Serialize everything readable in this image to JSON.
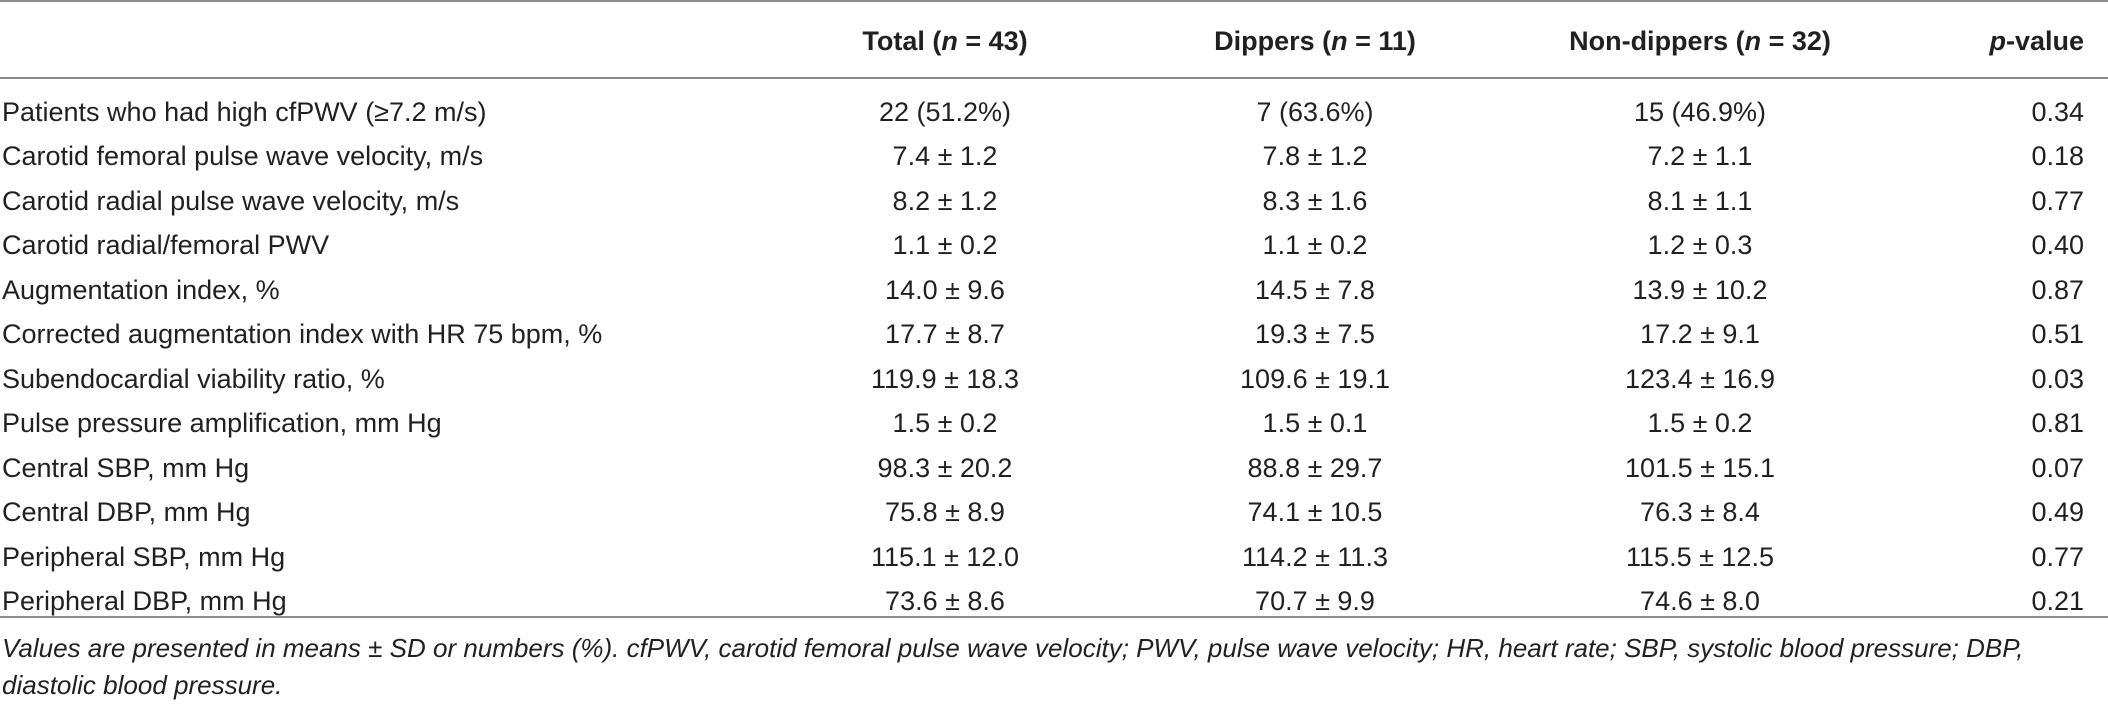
{
  "table": {
    "headers": {
      "label": "",
      "total": {
        "pre": "Total (",
        "italic": "n",
        "post": " = 43)"
      },
      "dippers": {
        "pre": "Dippers (",
        "italic": "n",
        "post": " = 11)"
      },
      "non_dippers": {
        "pre": "Non-dippers (",
        "italic": "n",
        "post": " = 32)"
      },
      "pvalue": {
        "italic": "p",
        "post": "-value"
      }
    },
    "rows": [
      {
        "label": "Patients who had high cfPWV (≥7.2 m/s)",
        "total": "22 (51.2%)",
        "dippers": "7 (63.6%)",
        "non_dippers": "15 (46.9%)",
        "p": "0.34"
      },
      {
        "label": "Carotid femoral pulse wave velocity, m/s",
        "total": "7.4 ± 1.2",
        "dippers": "7.8 ± 1.2",
        "non_dippers": "7.2 ± 1.1",
        "p": "0.18"
      },
      {
        "label": "Carotid radial pulse wave velocity, m/s",
        "total": "8.2 ± 1.2",
        "dippers": "8.3 ± 1.6",
        "non_dippers": "8.1 ± 1.1",
        "p": "0.77"
      },
      {
        "label": "Carotid radial/femoral PWV",
        "total": "1.1 ± 0.2",
        "dippers": "1.1 ± 0.2",
        "non_dippers": "1.2 ± 0.3",
        "p": "0.40"
      },
      {
        "label": "Augmentation index, %",
        "total": "14.0 ± 9.6",
        "dippers": "14.5 ± 7.8",
        "non_dippers": "13.9 ± 10.2",
        "p": "0.87"
      },
      {
        "label": "Corrected augmentation index with HR 75 bpm, %",
        "total": "17.7 ± 8.7",
        "dippers": "19.3 ± 7.5",
        "non_dippers": "17.2 ± 9.1",
        "p": "0.51"
      },
      {
        "label": "Subendocardial viability ratio, %",
        "total": "119.9 ± 18.3",
        "dippers": "109.6 ± 19.1",
        "non_dippers": "123.4 ± 16.9",
        "p": "0.03"
      },
      {
        "label": "Pulse pressure amplification, mm Hg",
        "total": "1.5 ± 0.2",
        "dippers": "1.5 ± 0.1",
        "non_dippers": "1.5 ± 0.2",
        "p": "0.81"
      },
      {
        "label": "Central SBP, mm Hg",
        "total": "98.3 ± 20.2",
        "dippers": "88.8 ± 29.7",
        "non_dippers": "101.5 ± 15.1",
        "p": "0.07"
      },
      {
        "label": "Central DBP, mm Hg",
        "total": "75.8 ± 8.9",
        "dippers": "74.1 ± 10.5",
        "non_dippers": "76.3 ± 8.4",
        "p": "0.49"
      },
      {
        "label": "Peripheral SBP, mm Hg",
        "total": "115.1 ± 12.0",
        "dippers": "114.2 ± 11.3",
        "non_dippers": "115.5 ± 12.5",
        "p": "0.77"
      },
      {
        "label": "Peripheral DBP, mm Hg",
        "total": "73.6 ± 8.6",
        "dippers": "70.7 ± 9.9",
        "non_dippers": "74.6 ± 8.0",
        "p": "0.21"
      }
    ]
  },
  "footnote": "Values are presented in means ± SD or numbers (%). cfPWV, carotid femoral pulse wave velocity; PWV, pulse wave velocity; HR, heart rate; SBP, systolic blood pressure; DBP, diastolic blood pressure."
}
